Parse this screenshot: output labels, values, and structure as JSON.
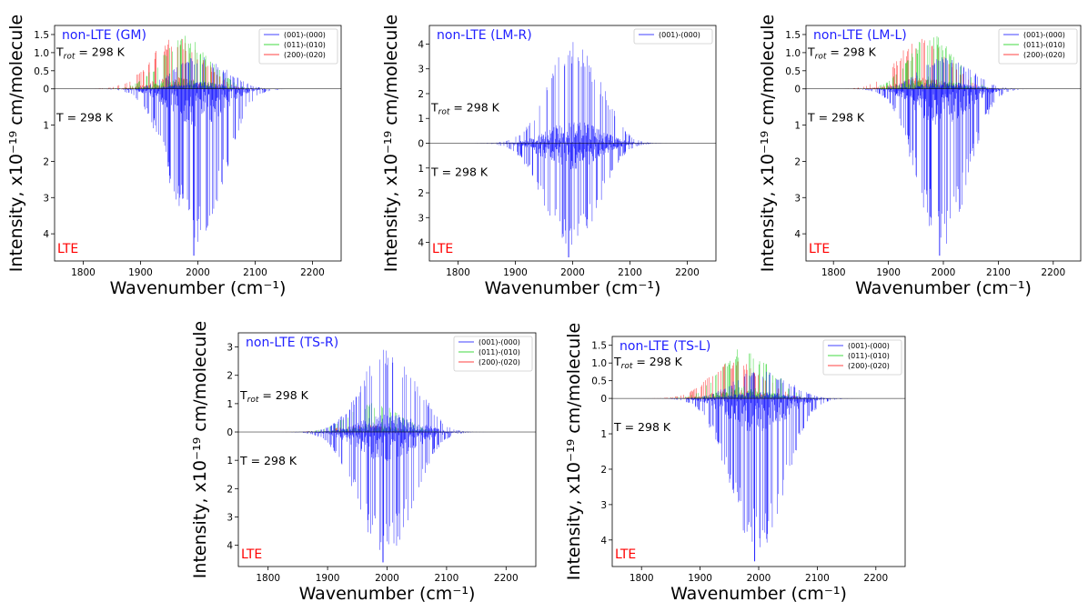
{
  "chart_data": [
    {
      "type": "line",
      "title": "non-LTE (GM)",
      "bottom_label": "LTE",
      "annotation_top": "T_rot = 298 K",
      "annotation_bottom": "T = 298 K",
      "xlabel": "Wavenumber (cm⁻¹)",
      "ylabel": "Intensity, x10⁻¹⁹ cm/molecule",
      "xlim": [
        1750,
        2250
      ],
      "ylim_top": 1.75,
      "ylim_bottom": 4.75,
      "x_ticks": [
        "1800",
        "1900",
        "2000",
        "2100",
        "2200"
      ],
      "y_ticks_top": [
        "0.5",
        "1.0",
        "1.5"
      ],
      "y_ticks_bottom": [
        "0",
        "1",
        "2",
        "3",
        "4"
      ],
      "legend": {
        "placement": "top-right"
      },
      "series": [
        {
          "name": "(001)-(000)",
          "color": "#0000ff",
          "peak_position": 2000,
          "max_intensity_top": 1.0,
          "max_intensity_bottom": 4.65
        },
        {
          "name": "(011)-(010)",
          "color": "#00cc00",
          "peak_position": 1975,
          "max_intensity_top": 1.7
        },
        {
          "name": "(200)-(020)",
          "color": "#ff0000",
          "peak_position": 1960,
          "max_intensity_top": 1.6
        }
      ]
    },
    {
      "type": "line",
      "title": "non-LTE (LM-R)",
      "bottom_label": "LTE",
      "annotation_top": "T_rot = 298 K",
      "annotation_bottom": "T = 298 K",
      "xlabel": "Wavenumber (cm⁻¹)",
      "ylabel": "Intensity, x10⁻¹⁹ cm/molecule",
      "xlim": [
        1750,
        2250
      ],
      "ylim_top": 4.75,
      "ylim_bottom": 4.75,
      "x_ticks": [
        "1800",
        "1900",
        "2000",
        "2100",
        "2200"
      ],
      "y_ticks_top": [
        "1",
        "2",
        "3",
        "4"
      ],
      "y_ticks_bottom": [
        "0",
        "1",
        "2",
        "3",
        "4"
      ],
      "legend": {
        "placement": "top-right"
      },
      "series": [
        {
          "name": "(001)-(000)",
          "color": "#0000ff",
          "peak_position": 2000,
          "max_intensity_top": 4.6,
          "max_intensity_bottom": 4.65
        }
      ]
    },
    {
      "type": "line",
      "title": "non-LTE (LM-L)",
      "bottom_label": "LTE",
      "annotation_top": "T_rot = 298 K",
      "annotation_bottom": "T = 298 K",
      "xlabel": "Wavenumber (cm⁻¹)",
      "ylabel": "Intensity, x10⁻¹⁹ cm/molecule",
      "xlim": [
        1750,
        2250
      ],
      "ylim_top": 1.75,
      "ylim_bottom": 4.75,
      "x_ticks": [
        "1800",
        "1900",
        "2000",
        "2100",
        "2200"
      ],
      "y_ticks_top": [
        "0.5",
        "1.0",
        "1.5"
      ],
      "y_ticks_bottom": [
        "0",
        "1",
        "2",
        "3",
        "4"
      ],
      "legend": {
        "placement": "top-right"
      },
      "series": [
        {
          "name": "(001)-(000)",
          "color": "#0000ff",
          "peak_position": 2000,
          "max_intensity_top": 1.0,
          "max_intensity_bottom": 4.65
        },
        {
          "name": "(011)-(010)",
          "color": "#00cc00",
          "peak_position": 1975,
          "max_intensity_top": 1.7
        },
        {
          "name": "(200)-(020)",
          "color": "#ff0000",
          "peak_position": 1960,
          "max_intensity_top": 1.6
        }
      ]
    },
    {
      "type": "line",
      "title": "non-LTE (TS-R)",
      "bottom_label": "LTE",
      "annotation_top": "T_rot = 298 K",
      "annotation_bottom": "T = 298 K",
      "xlabel": "Wavenumber (cm⁻¹)",
      "ylabel": "Intensity, x10⁻¹⁹ cm/molecule",
      "xlim": [
        1750,
        2250
      ],
      "ylim_top": 3.5,
      "ylim_bottom": 4.75,
      "x_ticks": [
        "1800",
        "1900",
        "2000",
        "2100",
        "2200"
      ],
      "y_ticks_top": [
        "1",
        "2",
        "3"
      ],
      "y_ticks_bottom": [
        "0",
        "1",
        "2",
        "3",
        "4"
      ],
      "legend": {
        "placement": "top-right"
      },
      "series": [
        {
          "name": "(001)-(000)",
          "color": "#0000ff",
          "peak_position": 2000,
          "max_intensity_top": 3.3,
          "max_intensity_bottom": 4.65
        },
        {
          "name": "(011)-(010)",
          "color": "#00cc00",
          "peak_position": 1975,
          "max_intensity_top": 1.2
        },
        {
          "name": "(200)-(020)",
          "color": "#ff0000",
          "peak_position": 1960,
          "max_intensity_top": 0.3
        }
      ]
    },
    {
      "type": "line",
      "title": "non-LTE (TS-L)",
      "bottom_label": "LTE",
      "annotation_top": "T_rot = 298 K",
      "annotation_bottom": "T = 298 K",
      "xlabel": "Wavenumber (cm⁻¹)",
      "ylabel": "Intensity, x10⁻¹⁹ cm/molecule",
      "xlim": [
        1750,
        2250
      ],
      "ylim_top": 1.75,
      "ylim_bottom": 4.75,
      "x_ticks": [
        "1800",
        "1900",
        "2000",
        "2100",
        "2200"
      ],
      "y_ticks_top": [
        "0.5",
        "1.0",
        "1.5"
      ],
      "y_ticks_bottom": [
        "0",
        "1",
        "2",
        "3",
        "4"
      ],
      "legend": {
        "placement": "top-right"
      },
      "series": [
        {
          "name": "(001)-(000)",
          "color": "#0000ff",
          "peak_position": 2000,
          "max_intensity_top": 0.9,
          "max_intensity_bottom": 4.65
        },
        {
          "name": "(011)-(010)",
          "color": "#00cc00",
          "peak_position": 1975,
          "max_intensity_top": 1.65
        },
        {
          "name": "(200)-(020)",
          "color": "#ff0000",
          "peak_position": 1960,
          "max_intensity_top": 1.2
        }
      ]
    }
  ]
}
